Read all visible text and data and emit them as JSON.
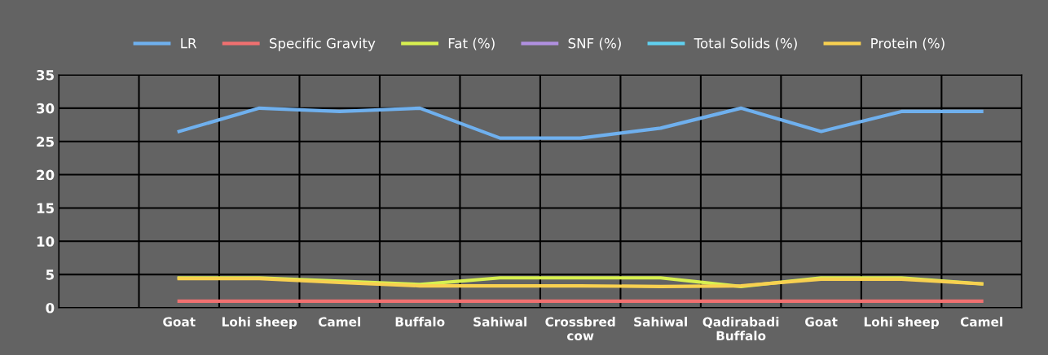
{
  "chart_data": {
    "type": "line",
    "categories": [
      null,
      "Goat",
      "Lohi sheep",
      "Camel",
      "Buffalo",
      "Sahiwal",
      "Crossbred cow",
      "Sahiwal",
      "Qadirabadi Buffalo",
      "Goat",
      "Lohi sheep",
      "Camel"
    ],
    "series": [
      {
        "name": "LR",
        "color": "#6fb0ee",
        "values": [
          null,
          26.5,
          30,
          29.5,
          30,
          25.5,
          25.5,
          27,
          30,
          26.5,
          29.5,
          29.5
        ]
      },
      {
        "name": "Specific Gravity",
        "color": "#f07070",
        "values": [
          null,
          1,
          1,
          1,
          1,
          1,
          1,
          1,
          1,
          1,
          1,
          1
        ]
      },
      {
        "name": "Fat (%)",
        "color": "#d8f050",
        "values": [
          null,
          4.5,
          4.5,
          4.0,
          3.5,
          4.5,
          4.5,
          4.5,
          3.2,
          4.5,
          4.5,
          3.6
        ]
      },
      {
        "name": "SNF (%)",
        "color": "#b090e0",
        "values": [
          null,
          null,
          null,
          null,
          null,
          null,
          null,
          null,
          null,
          null,
          null,
          null
        ]
      },
      {
        "name": "Total Solids (%)",
        "color": "#60d0f0",
        "values": [
          null,
          null,
          null,
          null,
          null,
          null,
          null,
          null,
          null,
          null,
          null,
          null
        ]
      },
      {
        "name": "Protein (%)",
        "color": "#f8d050",
        "values": [
          null,
          4.4,
          4.4,
          3.8,
          3.3,
          3.3,
          3.3,
          3.2,
          3.3,
          4.3,
          4.3,
          3.6
        ]
      }
    ],
    "ylim": [
      0,
      35
    ],
    "yticks": [
      0,
      5,
      10,
      15,
      20,
      25,
      30,
      35
    ],
    "grid": true,
    "legend": "top",
    "marker": "none",
    "line_style": "solid"
  }
}
